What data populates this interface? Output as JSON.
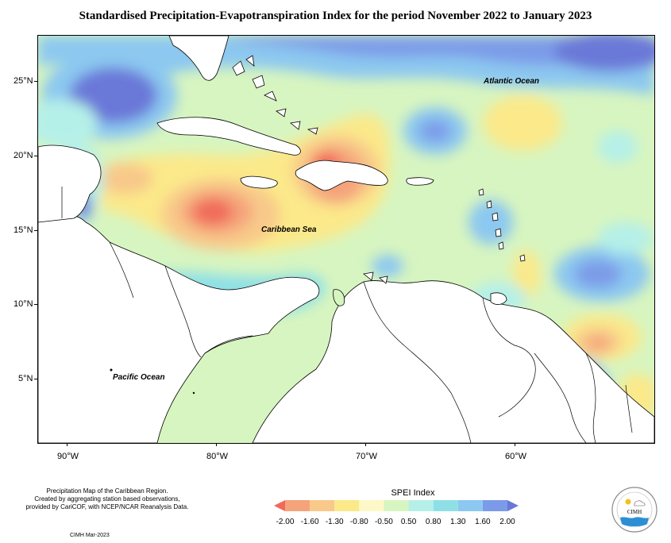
{
  "title": "Standardised Precipitation-Evapotranspiration Index for the period November 2022 to January 2023",
  "map": {
    "latitude_labels": [
      "25°N",
      "20°N",
      "15°N",
      "10°N",
      "5°N"
    ],
    "longitude_labels": [
      "90°W",
      "80°W",
      "70°W",
      "60°W"
    ],
    "ocean_labels": {
      "atlantic": "Atlantic Ocean",
      "caribbean": "Caribbean Sea",
      "pacific": "Pacific Ocean"
    },
    "background_color": "#d7f5c0"
  },
  "legend": {
    "title": "SPEI Index",
    "ticks": [
      "-2.00",
      "-1.60",
      "-1.30",
      "-0.80",
      "-0.50",
      "0.50",
      "0.80",
      "1.30",
      "1.60",
      "2.00"
    ],
    "colors": [
      "#f06a5a",
      "#f5a37a",
      "#f8c98a",
      "#fbe98a",
      "#fdf8c8",
      "#d7f5c0",
      "#b5f0e8",
      "#8fe0e6",
      "#8cc8f0",
      "#7b9be8",
      "#6a78d8"
    ]
  },
  "footnote": {
    "line1": "Precipitation Map of the Caribbean Region.",
    "line2": "Created by aggregating station based observations,",
    "line3": "provided by CariCOF, with NCEP/NCAR Reanalysis Data."
  },
  "credit": "CIMH Mar-2023",
  "logo": {
    "text": "CIMH"
  }
}
